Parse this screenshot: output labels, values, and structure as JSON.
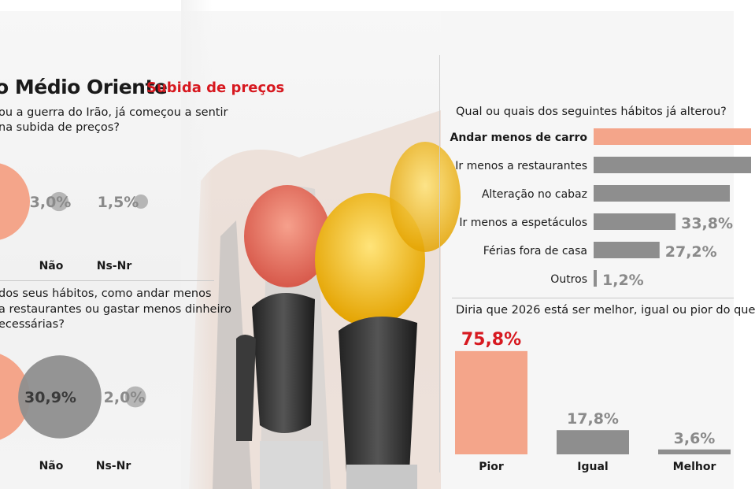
{
  "header": {
    "title": "o Médio Oriente",
    "subtitle": "Subida de preços"
  },
  "left_q1": {
    "question_line1": "ou a guerra do Irão, já começou a sentir",
    "question_line2": "na subida de preços?"
  },
  "left_q2": {
    "question_line1": "dos seus hábitos, como andar menos",
    "question_line2": "a restaurantes ou gastar menos dinheiro",
    "question_line3": "ecessárias?"
  },
  "right_q1": {
    "question": "Qual ou quais dos seguintes hábitos já alterou?"
  },
  "right_q2": {
    "question": "Diria que 2026 está ser melhor, igual ou pior do que"
  },
  "colors": {
    "accent": "#f4a58a",
    "gray": "#8e8e8e",
    "red": "#d71920"
  },
  "chart_data": [
    {
      "type": "bubble",
      "categories": [
        "Não",
        "Ns-Nr"
      ],
      "values": [
        3.0,
        1.5
      ],
      "labels": [
        "3,0%",
        "1,5%"
      ]
    },
    {
      "type": "bubble",
      "categories": [
        "Não",
        "Ns-Nr"
      ],
      "values": [
        30.9,
        2.0
      ],
      "labels": [
        "30,9%",
        "2,0%"
      ]
    },
    {
      "type": "bar",
      "orientation": "horizontal",
      "categories": [
        "Andar menos de carro",
        "Ir menos a restaurantes",
        "Alteração no cabaz",
        "Ir menos a espetáculos",
        "Férias fora de casa",
        "Outros"
      ],
      "values": [
        null,
        null,
        null,
        33.8,
        27.2,
        1.2
      ],
      "labels": [
        "",
        "",
        "",
        "33,8%",
        "27,2%",
        "1,2%"
      ],
      "highlight": "Andar menos de carro"
    },
    {
      "type": "bar",
      "categories": [
        "Pior",
        "Igual",
        "Melhor"
      ],
      "values": [
        75.8,
        17.8,
        3.6
      ],
      "labels": [
        "75,8%",
        "17,8%",
        "3,6%"
      ]
    }
  ]
}
